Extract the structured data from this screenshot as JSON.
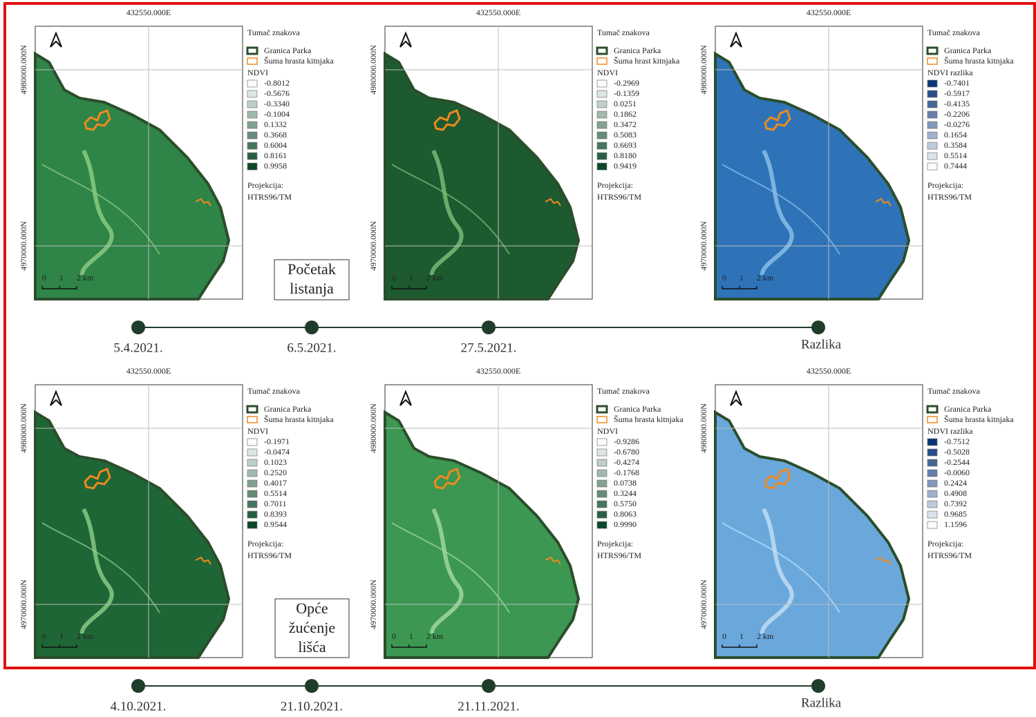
{
  "panels": [
    {
      "easting": "432550.000E",
      "northing_top": "4980000.000N",
      "northing_bottom": "4970000.000N",
      "scale": [
        "0",
        "1",
        "2 km"
      ],
      "legend": {
        "title": "Tumač znakova",
        "boundary": "Granica Parka",
        "forest": "Šuma hrasta kitnjaka",
        "index": "NDVI",
        "classes": [
          "-0.8012",
          "-0.5676",
          "-0.3340",
          "-0.1004",
          "0.1332",
          "0.3668",
          "0.6004",
          "0.8161",
          "0.9958"
        ],
        "projection_label": "Projekcija:",
        "projection": "HTRS96/TM"
      }
    },
    {
      "easting": "432550.000E",
      "northing_top": "4980000.000N",
      "northing_bottom": "4970000.000N",
      "scale": [
        "0",
        "1",
        "2 km"
      ],
      "legend": {
        "title": "Tumač znakova",
        "boundary": "Granica Parka",
        "forest": "Šuma hrast kitnjaka",
        "index": "NDVI",
        "classes": [
          "-0.2969",
          "-0.1359",
          "0.0251",
          "0.1862",
          "0.3472",
          "0.5083",
          "0.6693",
          "0.8180",
          "0.9419"
        ],
        "projection_label": "Projekcija:",
        "projection": "HTRS96/TM"
      }
    },
    {
      "easting": "432550.000E",
      "northing_top": "4980000.000N",
      "northing_bottom": "4970000.000N",
      "scale": [
        "0",
        "1",
        "2 km"
      ],
      "legend": {
        "title": "Tumač znakova",
        "boundary": "Granica Parka",
        "forest": "Šuma hrasta kitnjaka",
        "index": "NDVI razlika",
        "classes": [
          "-0.7401",
          "-0.5917",
          "-0.4135",
          "-0.2206",
          "-0.0276",
          "0.1654",
          "0.3584",
          "0.5514",
          "0.7444"
        ],
        "projection_label": "Projekcija:",
        "projection": "HTRS96/TM"
      }
    },
    {
      "easting": "432550.000E",
      "northing_top": "4980000.000N",
      "northing_bottom": "4970000.000N",
      "scale": [
        "0",
        "1",
        "2 km"
      ],
      "legend": {
        "title": "Tumač znakova",
        "boundary": "Granica Parka",
        "forest": "Šuma hrasta kitnjaka",
        "index": "NDVI",
        "classes": [
          "-0.1971",
          "-0.0474",
          "0.1023",
          "0.2520",
          "0.4017",
          "0.5514",
          "0.7011",
          "0.8393",
          "0.9544"
        ],
        "projection_label": "Projekcija:",
        "projection": "HTRS96/TM"
      }
    },
    {
      "easting": "432550.000E",
      "northing_top": "4980000.000N",
      "northing_bottom": "4970000.000N",
      "scale": [
        "0",
        "1",
        "2 km"
      ],
      "legend": {
        "title": "Tumač znakova",
        "boundary": "Granica Parka",
        "forest": "Šuma hrasta kitnjaka",
        "index": "NDVI",
        "classes": [
          "-0.9286",
          "-0.6780",
          "-0.4274",
          "-0.1768",
          "0.0738",
          "0.3244",
          "0.5750",
          "0.8063",
          "0.9990"
        ],
        "projection_label": "Projekcija:",
        "projection": "HTRS96/TM"
      }
    },
    {
      "easting": "432550.000E",
      "northing_top": "4980000.000N",
      "northing_bottom": "4970000.000N",
      "scale": [
        "0",
        "1",
        "2 km"
      ],
      "legend": {
        "title": "Tumač znakova",
        "boundary": "Granica Parka",
        "forest": "Šuma hrasta kitnjaka",
        "index": "NDVI razlika",
        "classes": [
          "-0.7512",
          "-0.5028",
          "-0.2544",
          "-0.0060",
          "0.2424",
          "0.4908",
          "0.7392",
          "0.9685",
          "1.1596"
        ],
        "projection_label": "Projekcija:",
        "projection": "HTRS96/TM"
      }
    }
  ],
  "phase_labels": [
    [
      "Početak",
      "listanja"
    ],
    [
      "Opće",
      "žućenje",
      "lišća"
    ]
  ],
  "timelines": [
    [
      "5.4.2021.",
      "6.5.2021.",
      "27.5.2021.",
      "Razlika"
    ],
    [
      "4.10.2021.",
      "21.10.2021.",
      "21.11.2021.",
      "Razlika"
    ]
  ]
}
